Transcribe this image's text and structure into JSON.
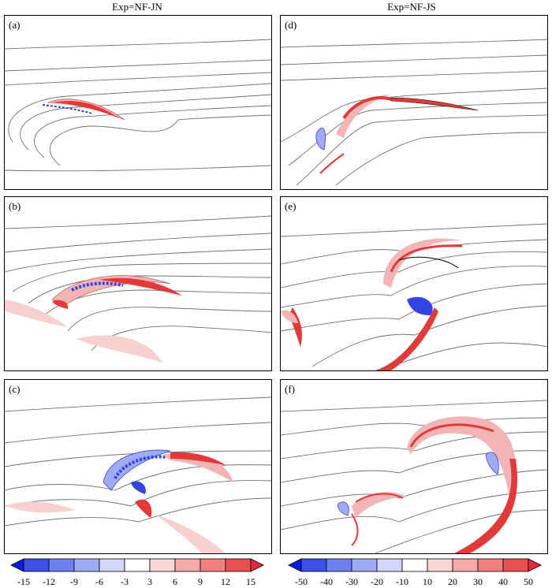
{
  "titles": {
    "left": "Exp=NF-JN",
    "right": "Exp=NF-JS"
  },
  "panels": [
    {
      "id": "a",
      "label": "(a)"
    },
    {
      "id": "b",
      "label": "(b)"
    },
    {
      "id": "c",
      "label": "(c)"
    },
    {
      "id": "d",
      "label": "(d)"
    },
    {
      "id": "e",
      "label": "(e)"
    },
    {
      "id": "f",
      "label": "(f)"
    }
  ],
  "colorbars": {
    "left": {
      "ticks": [
        "-15",
        "-12",
        "-9",
        "-6",
        "-3",
        "3",
        "6",
        "9",
        "12",
        "15"
      ]
    },
    "right": {
      "ticks": [
        "-50",
        "-40",
        "-30",
        "-20",
        "-10",
        "10",
        "20",
        "30",
        "40",
        "50"
      ]
    },
    "colors": [
      "#0a1ee6",
      "#3c50e6",
      "#6e7ff0",
      "#a0aaf5",
      "#d2d7fa",
      "#ffffff",
      "#fad7d7",
      "#f5aaaa",
      "#f07f7f",
      "#e65050",
      "#e6283c"
    ]
  },
  "colors": {
    "contour": "#707070",
    "red": "#e23a3a",
    "blue": "#3344e0",
    "pink": "#f2b4b4",
    "lightblue": "#aab4f2"
  }
}
